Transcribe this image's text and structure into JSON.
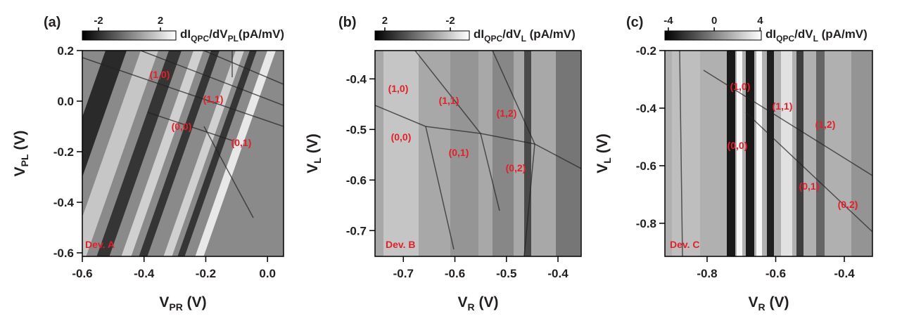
{
  "chart_data": [
    {
      "type": "heatmap",
      "panel": "(a)",
      "device": "Dev. A",
      "xlabel": [
        "V",
        "PR",
        " (V)"
      ],
      "ylabel": [
        "V",
        "PL",
        " (V)"
      ],
      "xlim": [
        -0.6,
        0.052
      ],
      "xticks": [
        -0.6,
        -0.4,
        -0.2,
        {
          "value": 0,
          "label": "0.0"
        }
      ],
      "ylim": [
        -0.614,
        0.2
      ],
      "yticks": [
        0.2,
        {
          "value": 0,
          "label": "0.0"
        },
        -0.2,
        -0.4,
        -0.6
      ],
      "colorbar": {
        "label": [
          "dI",
          "QPC",
          "/dV",
          "PL",
          "(pA/mV)"
        ],
        "lim": [
          -3.05,
          3
        ],
        "ticks": [
          -2,
          2
        ]
      },
      "annotations": [
        "(1,0)",
        "(1,1)",
        "(0,0)",
        "(0,1)"
      ]
    },
    {
      "type": "heatmap",
      "panel": "(b)",
      "device": "Dev. B",
      "xlabel": [
        "V",
        "R",
        " (V)"
      ],
      "ylabel": [
        "V",
        "L",
        " (V)"
      ],
      "xlim": [
        -0.755,
        -0.355
      ],
      "xticks": [
        -0.7,
        -0.6,
        -0.5,
        -0.4
      ],
      "ylim": [
        -0.751,
        -0.344
      ],
      "yticks": [
        -0.4,
        -0.5,
        -0.6,
        -0.7
      ],
      "colorbar": {
        "label": [
          "dI",
          "QPC",
          "/dV",
          "L",
          " (pA/mV)"
        ],
        "lim": [
          2.6,
          -3.16
        ],
        "ticks": [
          2,
          -2
        ]
      },
      "annotations": [
        "(1,0)",
        "(1,1)",
        "(1,2)",
        "(0,0)",
        "(0,1)",
        "(0,2)"
      ]
    },
    {
      "type": "heatmap",
      "panel": "(c)",
      "device": "Dev. C",
      "xlabel": [
        "V",
        "R",
        " (V)"
      ],
      "ylabel": [
        "V",
        "L",
        " (V)"
      ],
      "xlim": [
        -0.923,
        -0.318
      ],
      "xticks": [
        -0.8,
        -0.6,
        -0.4
      ],
      "ylim": [
        -0.915,
        -0.2
      ],
      "yticks": [
        -0.2,
        -0.4,
        -0.6,
        -0.8
      ],
      "colorbar": {
        "label": [
          "dI",
          "QPC",
          "/dV",
          "L",
          " (pA/mV)"
        ],
        "lim": [
          -4.3,
          4.1
        ],
        "ticks": [
          -4,
          0,
          4
        ]
      },
      "annotations": [
        "(1,0)",
        "(1,1)",
        "(1,2)",
        "(0,0)",
        "(0,1)",
        "(0,2)"
      ]
    }
  ]
}
